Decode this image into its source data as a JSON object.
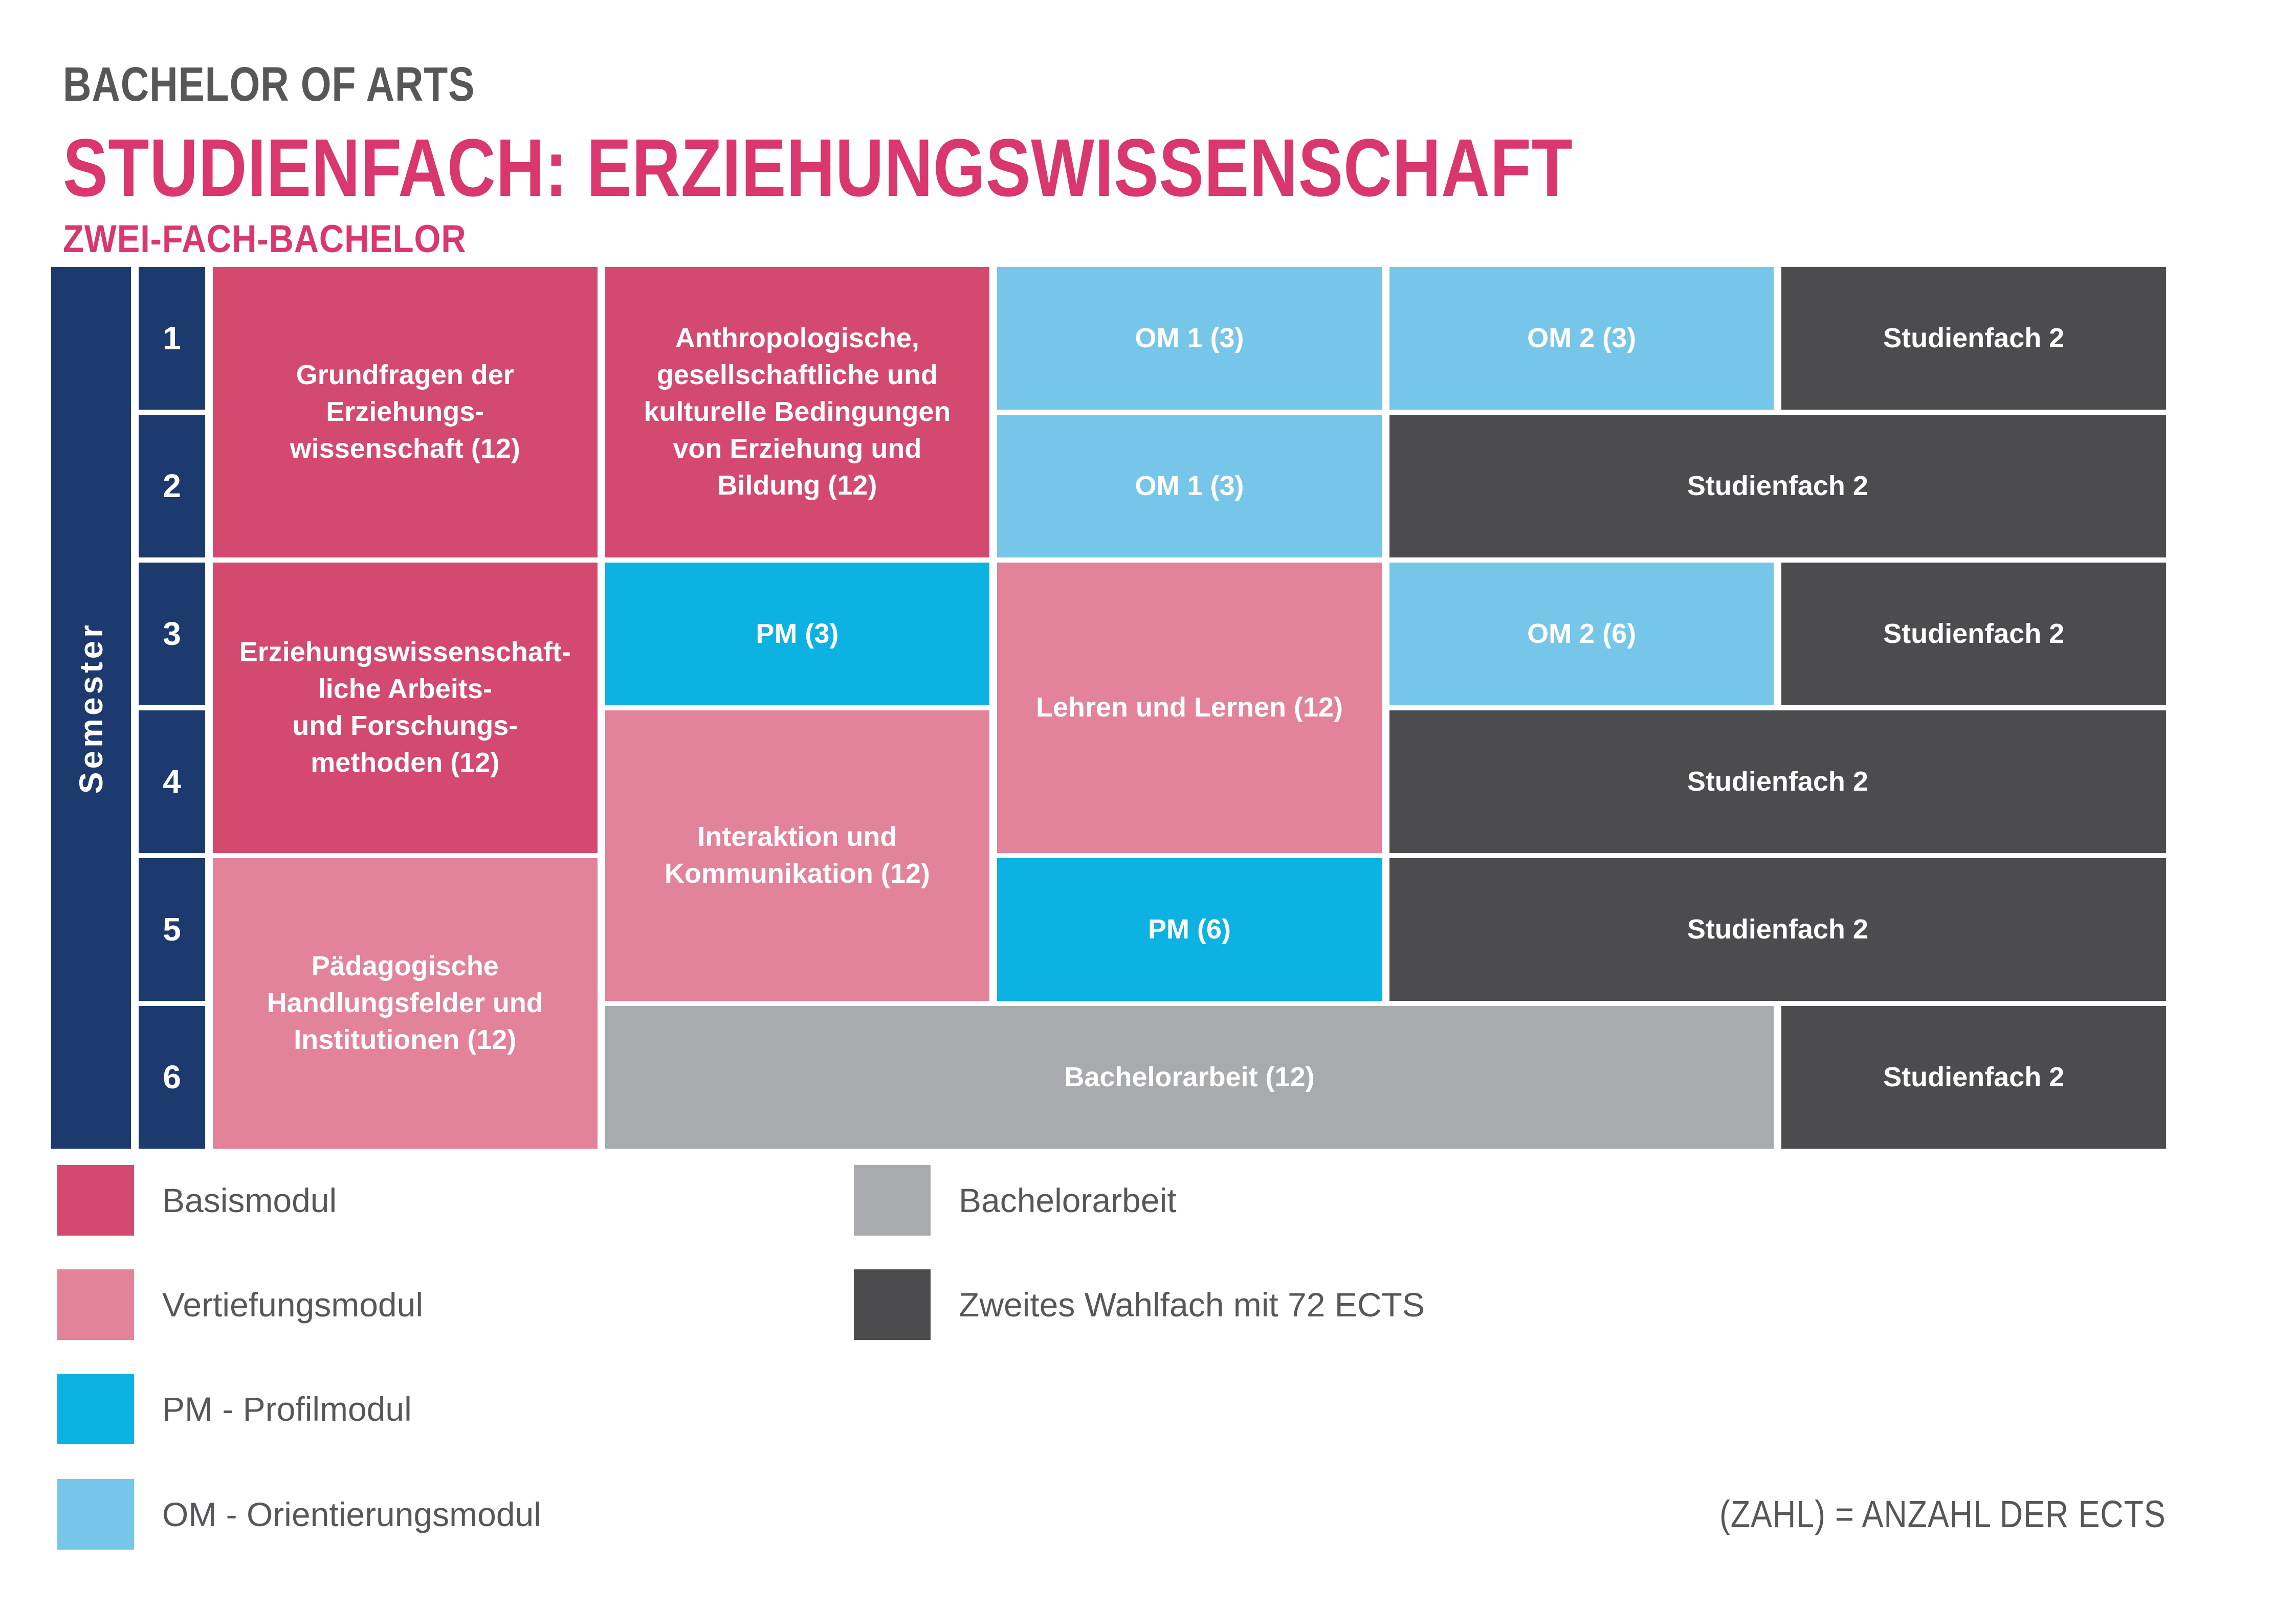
{
  "header": {
    "degree": "BACHELOR OF ARTS",
    "title": "STUDIENFACH: ERZIEHUNGSWISSENSCHAFT",
    "subtitle": "ZWEI-FACH-BACHELOR"
  },
  "grid": {
    "axis_label": "Semester",
    "semesters": [
      "1",
      "2",
      "3",
      "4",
      "5",
      "6"
    ],
    "modules": {
      "grundfragen": {
        "label": "Grundfragen der\nErziehungs-\nwissenschaft (12)",
        "type": "Basismodul",
        "semesters": "1-2"
      },
      "anthropologische": {
        "label": "Anthropologische,\ngesellschaftliche und\nkulturelle Bedingungen\nvon Erziehung und\nBildung (12)",
        "type": "Basismodul",
        "semesters": "1-2"
      },
      "om1_sem1": {
        "label": "OM 1 (3)",
        "type": "Orientierungsmodul",
        "semesters": "1"
      },
      "om2_sem1": {
        "label": "OM 2 (3)",
        "type": "Orientierungsmodul",
        "semesters": "1"
      },
      "sf2_sem1": {
        "label": "Studienfach 2",
        "type": "Zweites Wahlfach",
        "semesters": "1"
      },
      "om1_sem2": {
        "label": "OM 1 (3)",
        "type": "Orientierungsmodul",
        "semesters": "2"
      },
      "sf2_sem2": {
        "label": "Studienfach 2",
        "type": "Zweites Wahlfach",
        "semesters": "2"
      },
      "forschungsmethoden": {
        "label": "Erziehungswissenschaft-\nliche Arbeits-\nund Forschungs-\nmethoden (12)",
        "type": "Basismodul",
        "semesters": "3-4"
      },
      "pm3": {
        "label": "PM (3)",
        "type": "Profilmodul",
        "semesters": "3"
      },
      "lehren": {
        "label": "Lehren und Lernen (12)",
        "type": "Vertiefungsmodul",
        "semesters": "3-4"
      },
      "om2_sem3": {
        "label": "OM 2 (6)",
        "type": "Orientierungsmodul",
        "semesters": "3"
      },
      "sf2_sem3": {
        "label": "Studienfach 2",
        "type": "Zweites Wahlfach",
        "semesters": "3"
      },
      "interaktion": {
        "label": "Interaktion und\nKommunikation (12)",
        "type": "Vertiefungsmodul",
        "semesters": "4-5"
      },
      "sf2_sem4": {
        "label": "Studienfach 2",
        "type": "Zweites Wahlfach",
        "semesters": "4"
      },
      "paedagogische": {
        "label": "Pädagogische\nHandlungsfelder und\nInstitutionen (12)",
        "type": "Vertiefungsmodul",
        "semesters": "5-6"
      },
      "pm6": {
        "label": "PM (6)",
        "type": "Profilmodul",
        "semesters": "5"
      },
      "sf2_sem5": {
        "label": "Studienfach 2",
        "type": "Zweites Wahlfach",
        "semesters": "5"
      },
      "bachelorarbeit": {
        "label": "Bachelorarbeit (12)",
        "type": "Bachelorarbeit",
        "semesters": "6"
      },
      "sf2_sem6": {
        "label": "Studienfach 2",
        "type": "Zweites Wahlfach",
        "semesters": "6"
      }
    }
  },
  "legend": {
    "items_left": [
      {
        "label": "Basismodul"
      },
      {
        "label": "Vertiefungsmodul"
      },
      {
        "label": "PM - Profilmodul"
      },
      {
        "label": "OM - Orientierungsmodul"
      }
    ],
    "items_right": [
      {
        "label": "Bachelorarbeit"
      },
      {
        "label": "Zweites Wahlfach mit 72 ECTS"
      }
    ],
    "footnote": "(ZAHL) = ANZAHL DER ECTS"
  },
  "colors": {
    "navy": "#1d3a6e",
    "basismodul": "#d4496f",
    "vertiefungsmodul": "#e2839a",
    "profilmodul": "#0cb2e2",
    "orientierungsmodul": "#76c6ea",
    "bachelorarbeit": "#a8aaad",
    "wahlfach": "#4c4c4e",
    "accent_pink": "#d9376e",
    "text_gray": "#57575a"
  }
}
